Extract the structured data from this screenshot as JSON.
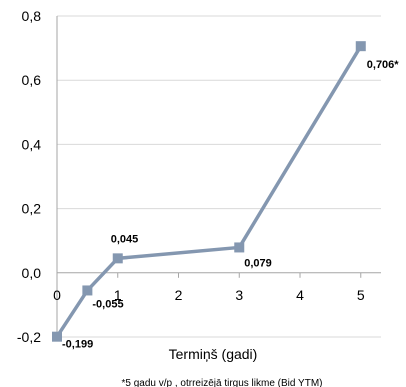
{
  "chart_data": {
    "type": "line",
    "x": [
      0,
      0.5,
      1,
      3,
      5
    ],
    "xticks": [
      "0",
      "1",
      "2",
      "3",
      "4",
      "5"
    ],
    "yticks": [
      "-0,2",
      "0,0",
      "0,2",
      "0,4",
      "0,6",
      "0,8"
    ],
    "xlim": [
      0,
      5.333
    ],
    "ylim": [
      -0.2,
      0.8
    ],
    "xlabel": "Termiņš (gadi)",
    "ylabel": "",
    "grid": "horizontal",
    "series": [
      {
        "values": [
          -0.199,
          -0.055,
          0.045,
          0.079,
          0.706
        ],
        "color": "#8497b0",
        "marker": "square"
      }
    ],
    "data_labels": [
      "-0,199",
      "-0,055",
      "0,045",
      "0,079",
      "0,706*"
    ],
    "footnote": "*5 gadu v/p , otrreizējā tirgus likme (Bid YTM)"
  }
}
